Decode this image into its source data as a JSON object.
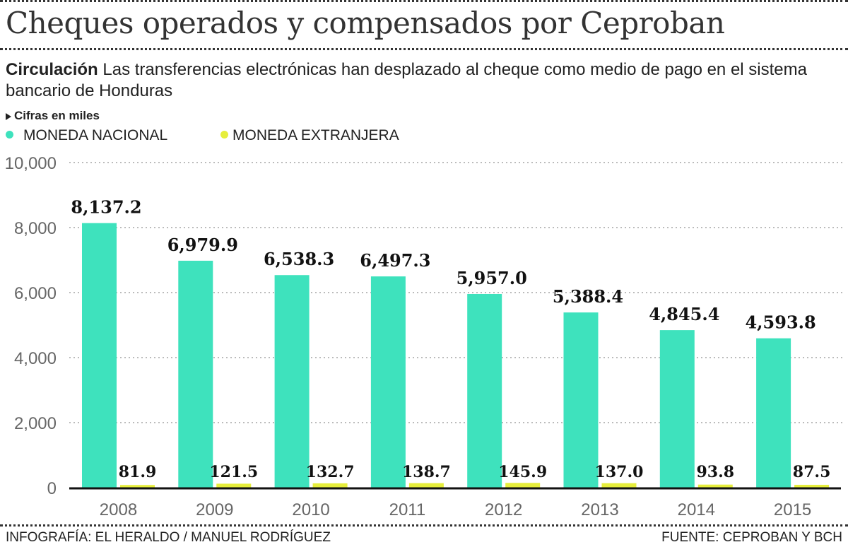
{
  "header": {
    "title": "Cheques operados y compensados por Ceproban",
    "subtitle_lead": "Circulación",
    "subtitle_text": " Las transferencias electrónicas han desplazado al cheque como medio de pago en el sistema bancario de Honduras",
    "units_note": "Cifras en miles"
  },
  "colors": {
    "nacional": "#3ee2bd",
    "extranjera": "#e6ee3c",
    "grid": "#bbbbbb",
    "axis": "#111111"
  },
  "footer": {
    "credit": "INFOGRAFÍA: EL HERALDO / MANUEL RODRÍGUEZ",
    "source": "FUENTE: CEPROBAN Y BCH"
  },
  "chart_data": {
    "type": "bar",
    "title": "Cheques operados y compensados por Ceproban",
    "xlabel": "",
    "ylabel": "",
    "ylim": [
      0,
      10000
    ],
    "yticks": [
      0,
      2000,
      4000,
      6000,
      8000,
      10000
    ],
    "ytick_labels": [
      "0",
      "2,000",
      "4,000",
      "6,000",
      "8,000",
      "10,000"
    ],
    "grid": true,
    "legend": "top-left",
    "categories": [
      "2008",
      "2009",
      "2010",
      "2011",
      "2012",
      "2013",
      "2014",
      "2015"
    ],
    "series": [
      {
        "name": "MONEDA NACIONAL",
        "values": [
          8137.2,
          6979.9,
          6538.3,
          6497.3,
          5957.0,
          5388.4,
          4845.4,
          4593.8
        ],
        "labels": [
          "8,137.2",
          "6,979.9",
          "6,538.3",
          "6,497.3",
          "5,957.0",
          "5,388.4",
          "4,845.4",
          "4,593.8"
        ]
      },
      {
        "name": "MONEDA EXTRANJERA",
        "values": [
          81.9,
          121.5,
          132.7,
          138.7,
          145.9,
          137.0,
          93.8,
          87.5
        ],
        "labels": [
          "81.9",
          "121.5",
          "132.7",
          "138.7",
          "145.9",
          "137.0",
          "93.8",
          "87.5"
        ]
      }
    ]
  }
}
